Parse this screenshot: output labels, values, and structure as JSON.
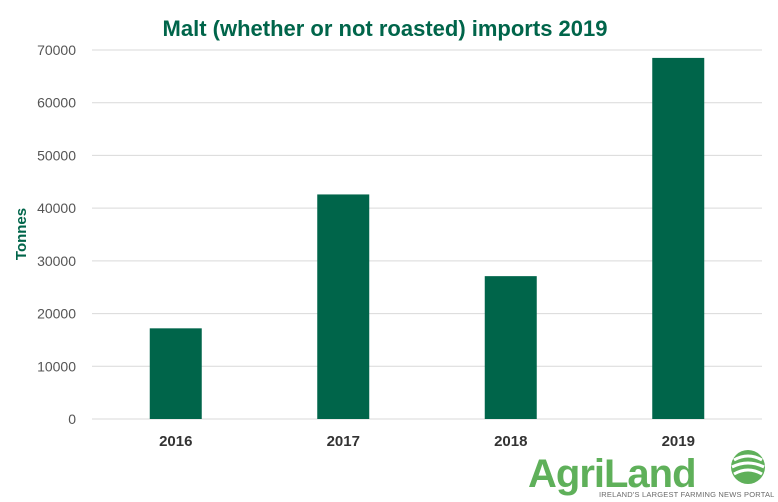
{
  "colors": {
    "bar": "#00654a",
    "title": "#00654a",
    "grid": "#d9d9d9",
    "logo_green": "#5fb05a",
    "logo_dark": "#1a6f41"
  },
  "chart_data": {
    "type": "bar",
    "title": "Malt (whether or not roasted) imports 2019",
    "xlabel": "",
    "ylabel": "Tonnes",
    "categories": [
      "2016",
      "2017",
      "2018",
      "2019"
    ],
    "values": [
      17200,
      42600,
      27100,
      68500
    ],
    "ylim": [
      0,
      70000
    ],
    "yticks": [
      0,
      10000,
      20000,
      30000,
      40000,
      50000,
      60000,
      70000
    ],
    "grid": true,
    "legend": "none"
  },
  "logo": {
    "brand": "AgriLand",
    "tagline": "IRELAND'S LARGEST FARMING NEWS PORTAL",
    "icon": "leaf-stripes-icon"
  }
}
